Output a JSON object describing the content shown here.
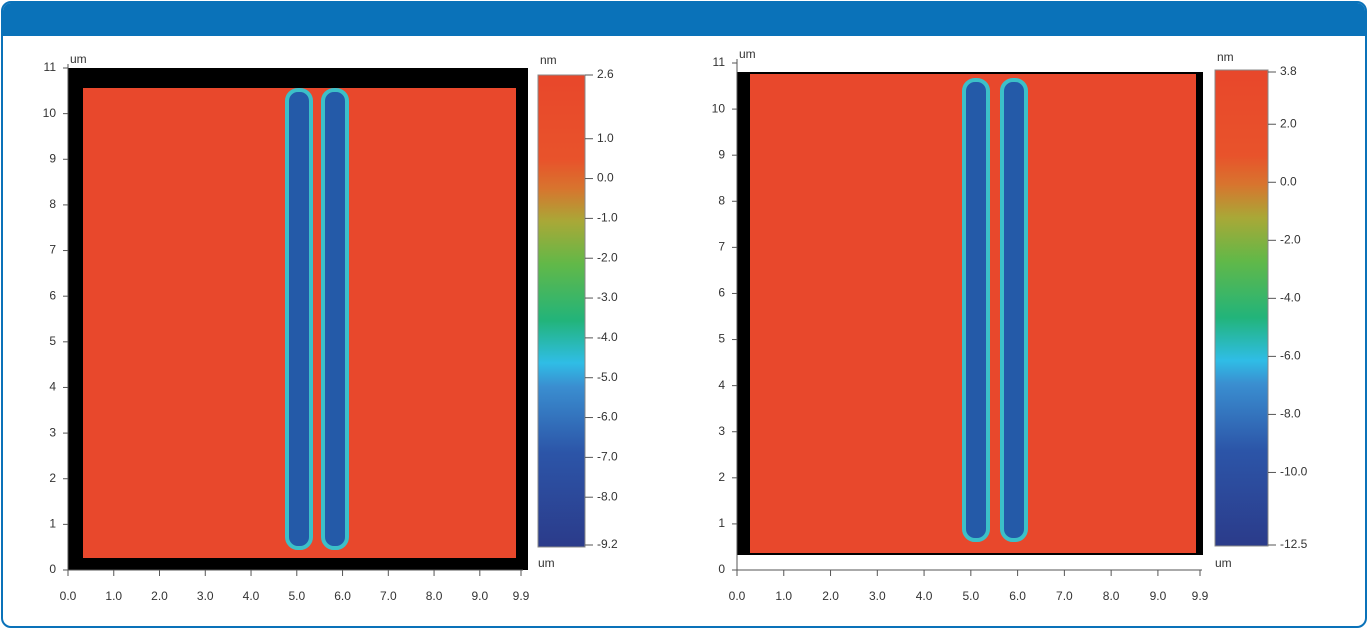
{
  "chart_data": [
    {
      "type": "heatmap",
      "ylabel": "um",
      "xlabel": "um",
      "colorbar_label": "nm",
      "xlim": [
        0,
        9.9
      ],
      "ylim": [
        0,
        11
      ],
      "clim": [
        -9.2,
        2.6
      ],
      "xticks": [
        {
          "value": 0,
          "label": "0.0"
        },
        {
          "value": 1,
          "label": "1.0"
        },
        {
          "value": 2,
          "label": "2.0"
        },
        {
          "value": 3,
          "label": "3.0"
        },
        {
          "value": 4,
          "label": "4.0"
        },
        {
          "value": 5,
          "label": "5.0"
        },
        {
          "value": 6,
          "label": "6.0"
        },
        {
          "value": 7,
          "label": "7.0"
        },
        {
          "value": 8,
          "label": "8.0"
        },
        {
          "value": 9,
          "label": "9.0"
        },
        9.9
      ],
      "yticks": [
        0,
        1,
        2,
        3,
        4,
        5,
        6,
        7,
        8,
        9,
        10,
        11
      ],
      "cticks": [
        2.6,
        {
          "value": 1,
          "label": "1.0"
        },
        {
          "value": 0,
          "label": "0.0"
        },
        {
          "value": -1,
          "label": "-1.0"
        },
        {
          "value": -2,
          "label": "-2.0"
        },
        {
          "value": -3,
          "label": "-3.0"
        },
        {
          "value": -4,
          "label": "-4.0"
        },
        {
          "value": -5,
          "label": "-5.0"
        },
        {
          "value": -6,
          "label": "-6.0"
        },
        {
          "value": -7,
          "label": "-7.0"
        },
        {
          "value": -8,
          "label": "-8.0"
        },
        -9.2
      ]
    },
    {
      "type": "heatmap",
      "ylabel": "um",
      "xlabel": "um",
      "colorbar_label": "nm",
      "xlim": [
        0,
        9.9
      ],
      "ylim": [
        0,
        11
      ],
      "clim": [
        -12.5,
        3.8
      ],
      "xticks": [
        {
          "value": 0,
          "label": "0.0"
        },
        {
          "value": 1,
          "label": "1.0"
        },
        {
          "value": 2,
          "label": "2.0"
        },
        {
          "value": 3,
          "label": "3.0"
        },
        {
          "value": 4,
          "label": "4.0"
        },
        {
          "value": 5,
          "label": "5.0"
        },
        {
          "value": 6,
          "label": "6.0"
        },
        {
          "value": 7,
          "label": "7.0"
        },
        {
          "value": 8,
          "label": "8.0"
        },
        {
          "value": 9,
          "label": "9.0"
        },
        9.9
      ],
      "yticks": [
        0,
        1,
        2,
        3,
        4,
        5,
        6,
        7,
        8,
        9,
        10,
        11
      ],
      "cticks": [
        3.8,
        {
          "value": 2,
          "label": "2.0"
        },
        {
          "value": 0,
          "label": "0.0"
        },
        {
          "value": -2,
          "label": "-2.0"
        },
        {
          "value": -4,
          "label": "-4.0"
        },
        {
          "value": -6,
          "label": "-6.0"
        },
        {
          "value": -8,
          "label": "-8.0"
        },
        {
          "value": -10,
          "label": "-10.0"
        },
        -12.5
      ]
    }
  ]
}
